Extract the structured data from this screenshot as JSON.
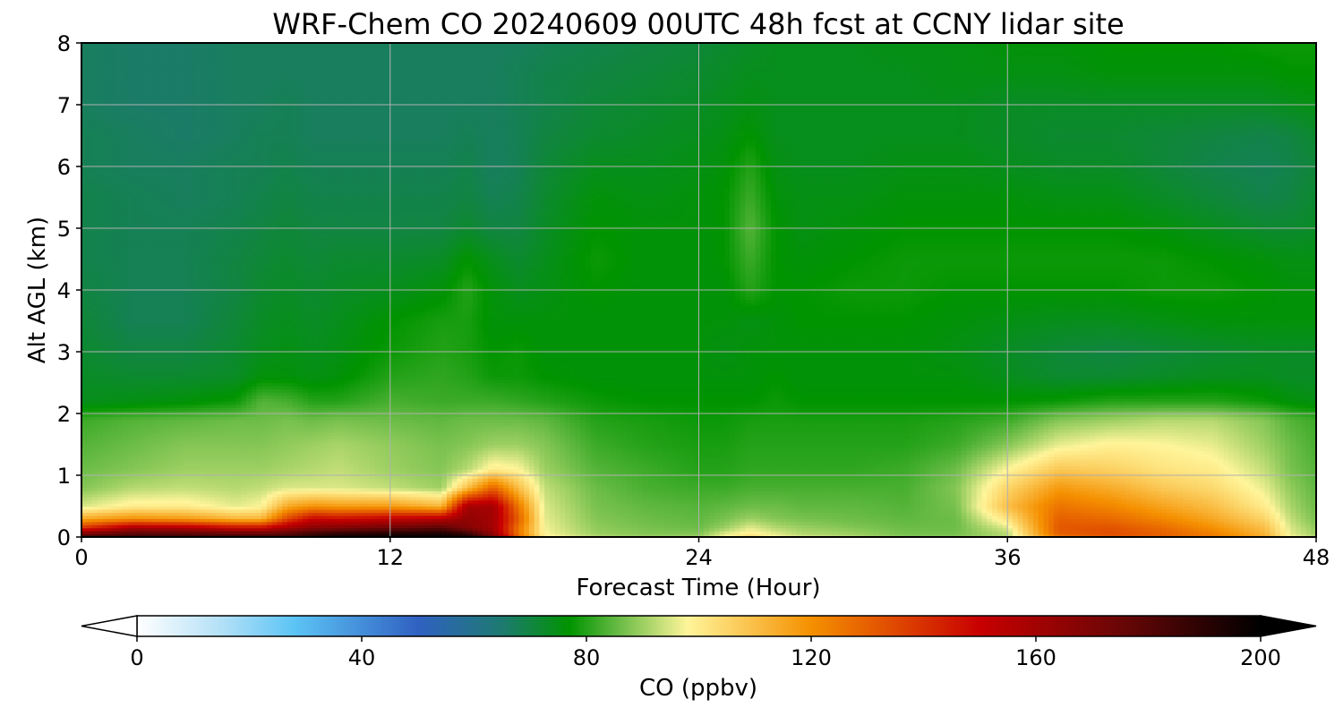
{
  "chart_data": {
    "type": "heatmap",
    "title": "WRF-Chem CO  20240609 00UTC 48h fcst at CCNY lidar site",
    "xlabel": "Forecast Time (Hour)",
    "ylabel": "Alt AGL (km)",
    "xlim": [
      0,
      48
    ],
    "ylim": [
      0,
      8
    ],
    "xticks": [
      0,
      12,
      24,
      36,
      48
    ],
    "xtick_labels": [
      "0",
      "12",
      "24",
      "36",
      "48"
    ],
    "yticks": [
      0,
      1,
      2,
      3,
      4,
      5,
      6,
      7,
      8
    ],
    "ytick_labels": [
      "0",
      "1",
      "2",
      "3",
      "4",
      "5",
      "6",
      "7",
      "8"
    ],
    "grid": true,
    "colorbar": {
      "label": "CO  (ppbv)",
      "range": [
        0,
        200
      ],
      "ticks": [
        0,
        40,
        80,
        120,
        160,
        200
      ],
      "tick_labels": [
        "0",
        "40",
        "80",
        "120",
        "160",
        "200"
      ],
      "extend": "both",
      "orientation": "horizontal",
      "stops": [
        {
          "v": 0,
          "c": "#ffffff"
        },
        {
          "v": 15,
          "c": "#b3e0f7"
        },
        {
          "v": 28,
          "c": "#5cc4f5"
        },
        {
          "v": 50,
          "c": "#3061c2"
        },
        {
          "v": 65,
          "c": "#1d7a70"
        },
        {
          "v": 77,
          "c": "#009400"
        },
        {
          "v": 85,
          "c": "#60b840"
        },
        {
          "v": 98,
          "c": "#fff59a"
        },
        {
          "v": 120,
          "c": "#f59000"
        },
        {
          "v": 150,
          "c": "#c80000"
        },
        {
          "v": 175,
          "c": "#6a0606"
        },
        {
          "v": 200,
          "c": "#000000"
        }
      ]
    },
    "x": [
      0,
      2,
      4,
      6,
      7,
      8,
      9,
      10,
      12,
      14,
      15,
      16,
      17,
      18,
      20,
      22,
      24,
      25,
      26,
      27,
      28,
      30,
      32,
      34,
      36,
      38,
      40,
      42,
      44,
      46,
      47,
      48
    ],
    "y": [
      0,
      0.05,
      0.15,
      0.3,
      0.5,
      0.8,
      1.1,
      1.5,
      1.9,
      2.2,
      2.6,
      3.0,
      3.5,
      4.0,
      4.5,
      5.0,
      5.5,
      6.0,
      6.5,
      7.0,
      7.5,
      8.0
    ],
    "z": [
      [
        185,
        185,
        185,
        185,
        185,
        185,
        190,
        195,
        198,
        198,
        195,
        175,
        130,
        100,
        92,
        90,
        90,
        98,
        105,
        98,
        95,
        92,
        88,
        88,
        92,
        125,
        132,
        130,
        125,
        115,
        98,
        92
      ],
      [
        175,
        182,
        182,
        180,
        180,
        182,
        188,
        192,
        195,
        196,
        190,
        165,
        125,
        98,
        90,
        88,
        88,
        96,
        100,
        96,
        92,
        90,
        87,
        87,
        92,
        130,
        134,
        130,
        124,
        112,
        96,
        90
      ],
      [
        140,
        160,
        158,
        150,
        150,
        160,
        168,
        170,
        175,
        180,
        168,
        160,
        125,
        97,
        89,
        87,
        86,
        90,
        96,
        92,
        90,
        88,
        86,
        86,
        95,
        132,
        133,
        128,
        120,
        110,
        95,
        89
      ],
      [
        115,
        120,
        118,
        112,
        112,
        135,
        150,
        148,
        152,
        155,
        165,
        160,
        130,
        96,
        88,
        86,
        85,
        87,
        90,
        88,
        87,
        86,
        85,
        86,
        102,
        130,
        128,
        122,
        115,
        105,
        93,
        87
      ],
      [
        95,
        100,
        100,
        96,
        98,
        115,
        120,
        118,
        118,
        112,
        160,
        160,
        125,
        95,
        87,
        85,
        84,
        85,
        86,
        86,
        85,
        85,
        84,
        87,
        110,
        126,
        122,
        116,
        110,
        100,
        91,
        86
      ],
      [
        88,
        92,
        93,
        92,
        93,
        95,
        95,
        95,
        93,
        90,
        110,
        130,
        110,
        93,
        86,
        83,
        82,
        82,
        83,
        83,
        83,
        83,
        83,
        88,
        105,
        118,
        114,
        108,
        104,
        96,
        89,
        85
      ],
      [
        86,
        88,
        90,
        90,
        90,
        91,
        92,
        93,
        90,
        88,
        92,
        100,
        98,
        90,
        84,
        82,
        80,
        80,
        81,
        81,
        81,
        81,
        82,
        86,
        98,
        108,
        106,
        102,
        100,
        93,
        87,
        84
      ],
      [
        84,
        86,
        88,
        88,
        88,
        89,
        90,
        91,
        89,
        87,
        88,
        90,
        90,
        88,
        82,
        80,
        79,
        79,
        80,
        80,
        80,
        80,
        80,
        82,
        88,
        96,
        99,
        98,
        96,
        90,
        86,
        83
      ],
      [
        82,
        84,
        85,
        86,
        86,
        87,
        86,
        87,
        86,
        85,
        86,
        86,
        86,
        85,
        80,
        79,
        78,
        78,
        79,
        79,
        79,
        79,
        79,
        80,
        82,
        88,
        90,
        92,
        92,
        88,
        84,
        82
      ],
      [
        74,
        75,
        76,
        78,
        84,
        83,
        80,
        80,
        83,
        82,
        82,
        82,
        81,
        80,
        78,
        77,
        77,
        77,
        77,
        78,
        77,
        77,
        77,
        77,
        77,
        78,
        80,
        80,
        80,
        78,
        76,
        75
      ],
      [
        73,
        72,
        72,
        73,
        76,
        76,
        75,
        76,
        80,
        81,
        80,
        78,
        78,
        77,
        76,
        76,
        76,
        76,
        76,
        77,
        76,
        76,
        76,
        76,
        74,
        72,
        72,
        73,
        74,
        74,
        73,
        73
      ],
      [
        72,
        70,
        70,
        72,
        74,
        75,
        74,
        75,
        78,
        80,
        79,
        77,
        78,
        76,
        76,
        76,
        76,
        75,
        76,
        76,
        76,
        76,
        76,
        75,
        73,
        71,
        70,
        71,
        72,
        73,
        73,
        73
      ],
      [
        71,
        68,
        68,
        71,
        73,
        74,
        73,
        74,
        77,
        79,
        79,
        76,
        76,
        76,
        76,
        76,
        76,
        76,
        75,
        76,
        77,
        77,
        77,
        76,
        75,
        74,
        74,
        75,
        76,
        76,
        76,
        76
      ],
      [
        70,
        68,
        68,
        70,
        72,
        73,
        72,
        73,
        74,
        76,
        80,
        76,
        74,
        75,
        77,
        76,
        76,
        76,
        80,
        77,
        77,
        78,
        78,
        77,
        77,
        77,
        77,
        78,
        78,
        77,
        76,
        76
      ],
      [
        69,
        68,
        68,
        70,
        71,
        72,
        71,
        72,
        72,
        73,
        77,
        74,
        72,
        74,
        78,
        76,
        76,
        77,
        82,
        77,
        76,
        77,
        78,
        78,
        78,
        78,
        78,
        78,
        77,
        76,
        75,
        75
      ],
      [
        69,
        68,
        68,
        69,
        70,
        71,
        70,
        70,
        70,
        70,
        72,
        70,
        70,
        73,
        77,
        76,
        76,
        77,
        84,
        77,
        75,
        76,
        77,
        77,
        77,
        77,
        77,
        76,
        74,
        72,
        72,
        73
      ],
      [
        69,
        68,
        67,
        68,
        69,
        70,
        69,
        69,
        69,
        69,
        70,
        68,
        69,
        72,
        76,
        75,
        76,
        77,
        82,
        76,
        75,
        75,
        76,
        76,
        76,
        75,
        75,
        73,
        71,
        69,
        70,
        72
      ],
      [
        68,
        67,
        67,
        68,
        68,
        69,
        68,
        68,
        68,
        68,
        69,
        67,
        68,
        71,
        74,
        74,
        75,
        76,
        80,
        75,
        74,
        74,
        75,
        75,
        74,
        73,
        73,
        71,
        69,
        68,
        69,
        71
      ],
      [
        68,
        67,
        66,
        67,
        68,
        68,
        67,
        67,
        67,
        67,
        68,
        67,
        68,
        70,
        72,
        73,
        74,
        75,
        77,
        74,
        74,
        74,
        74,
        74,
        73,
        72,
        72,
        71,
        70,
        69,
        70,
        72
      ],
      [
        67,
        66,
        66,
        67,
        67,
        68,
        67,
        67,
        67,
        67,
        67,
        67,
        68,
        69,
        71,
        72,
        73,
        74,
        75,
        74,
        74,
        74,
        74,
        74,
        73,
        73,
        73,
        73,
        73,
        73,
        74,
        75
      ],
      [
        67,
        66,
        66,
        67,
        67,
        67,
        67,
        67,
        67,
        67,
        67,
        67,
        68,
        69,
        70,
        71,
        72,
        73,
        74,
        74,
        74,
        74,
        74,
        75,
        75,
        75,
        76,
        76,
        76,
        76,
        77,
        77
      ],
      [
        67,
        66,
        66,
        67,
        67,
        67,
        67,
        67,
        67,
        67,
        67,
        67,
        67,
        68,
        69,
        70,
        71,
        72,
        73,
        74,
        74,
        74,
        75,
        75,
        76,
        76,
        77,
        77,
        77,
        78,
        78,
        78
      ]
    ]
  }
}
